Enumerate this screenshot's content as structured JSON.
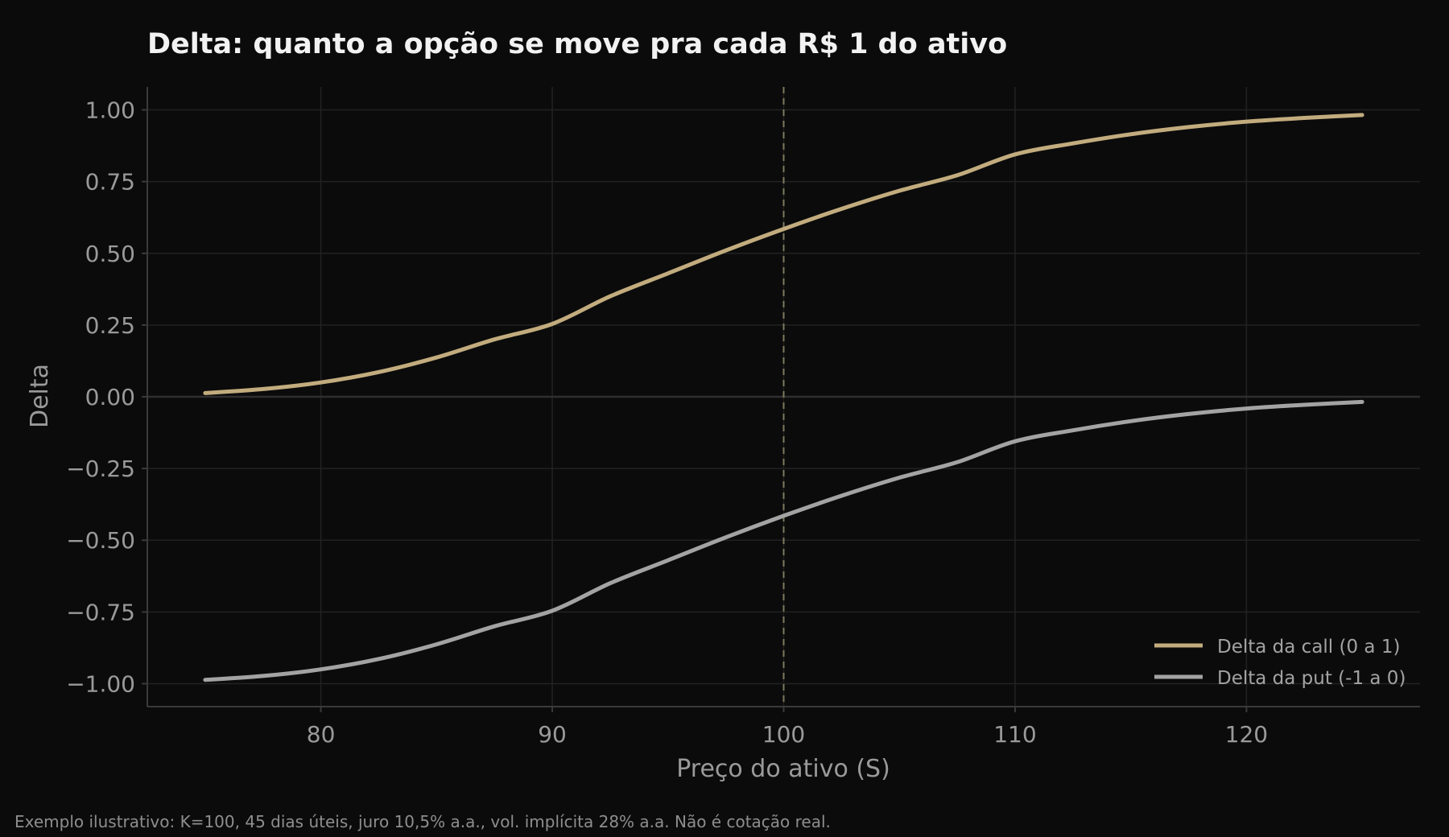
{
  "colors": {
    "background": "#0b0b0b",
    "call_line": "#c2ac7e",
    "put_line": "#a3a3a3",
    "grid": "#222222",
    "spine": "#3a3a3a",
    "zero_line": "#2f2f2f",
    "strike_line": "#7d7a5e"
  },
  "chart_data": {
    "type": "line",
    "title": "Delta: quanto a opção se move pra cada R$ 1 do ativo",
    "xlabel": "Preço do ativo (S)",
    "ylabel": "Delta",
    "xlim": [
      72.5,
      127.5
    ],
    "ylim": [
      -1.08,
      1.08
    ],
    "x_ticks": [
      80,
      90,
      100,
      110,
      120
    ],
    "x_tick_labels": [
      "80",
      "90",
      "100",
      "110",
      "120"
    ],
    "y_ticks": [
      1.0,
      0.75,
      0.5,
      0.25,
      0.0,
      -0.25,
      -0.5,
      -0.75,
      -1.0
    ],
    "y_tick_labels": [
      "1.00",
      "0.75",
      "0.50",
      "0.25",
      "0.00",
      "−0.25",
      "−0.50",
      "−0.75",
      "−1.00"
    ],
    "grid": true,
    "legend_position": "bottom-right",
    "reference_lines": {
      "vertical_x": 100,
      "horizontal_y": 0
    },
    "x": [
      75,
      77.5,
      80,
      82.5,
      85,
      87.5,
      90,
      92.5,
      95,
      97.5,
      100,
      102.5,
      105,
      107.5,
      110,
      112.5,
      115,
      117.5,
      120,
      122.5,
      125
    ],
    "series": [
      {
        "name": "Delta da call (0 a 1)",
        "color_key": "call_line",
        "values": [
          0.013,
          0.027,
          0.05,
          0.086,
          0.137,
          0.2,
          0.254,
          0.35,
          0.43,
          0.51,
          0.585,
          0.655,
          0.718,
          0.772,
          0.845,
          0.883,
          0.915,
          0.94,
          0.959,
          0.972,
          0.982
        ]
      },
      {
        "name": "Delta da put (-1 a 0)",
        "color_key": "put_line",
        "values": [
          -0.987,
          -0.973,
          -0.95,
          -0.914,
          -0.863,
          -0.8,
          -0.746,
          -0.65,
          -0.57,
          -0.49,
          -0.415,
          -0.345,
          -0.282,
          -0.228,
          -0.155,
          -0.117,
          -0.085,
          -0.06,
          -0.041,
          -0.028,
          -0.018
        ]
      }
    ],
    "footnote": "Exemplo ilustrativo: K=100, 45 dias úteis, juro 10,5% a.a., vol. implícita 28% a.a. Não é cotação real."
  }
}
